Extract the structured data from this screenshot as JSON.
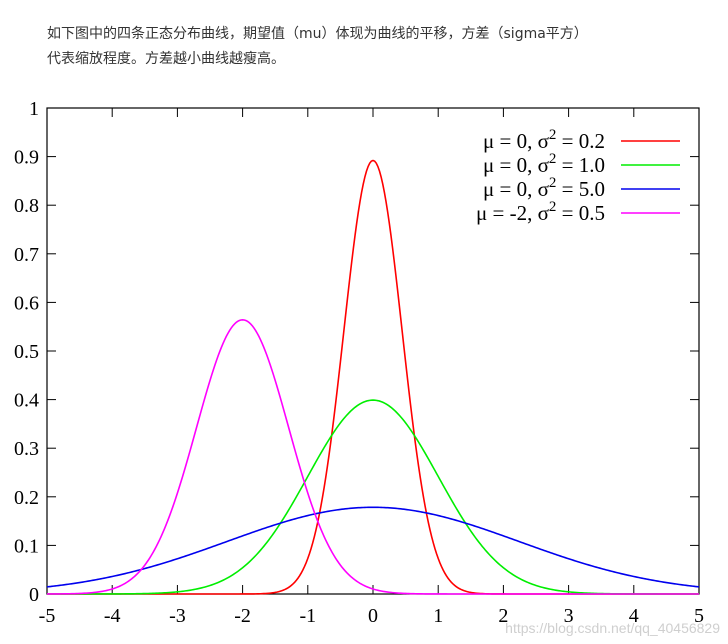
{
  "intro": {
    "line1": "如下图中的四条正态分布曲线，期望值（mu）体现为曲线的平移，方差（sigma平方）",
    "line2": "代表缩放程度。方差越小曲线越瘦高。"
  },
  "watermark": "https://blog.csdn.net/qq_40456829",
  "chart_data": {
    "type": "line",
    "title": "",
    "xlabel": "",
    "ylabel": "",
    "xlim": [
      -5,
      5
    ],
    "ylim": [
      0,
      1
    ],
    "x_ticks": [
      "-5",
      "-4",
      "-3",
      "-2",
      "-1",
      "0",
      "1",
      "2",
      "3",
      "4",
      "5"
    ],
    "y_ticks": [
      "0",
      "0.1",
      "0.2",
      "0.3",
      "0.4",
      "0.5",
      "0.6",
      "0.7",
      "0.8",
      "0.9",
      "1"
    ],
    "grid": false,
    "legend_position": "top-right",
    "series": [
      {
        "name": "μ = 0, σ2 = 0.2",
        "mu": 0,
        "variance": 0.2,
        "color": "#ff0000"
      },
      {
        "name": "μ = 0, σ2 = 1.0",
        "mu": 0,
        "variance": 1.0,
        "color": "#00ee00"
      },
      {
        "name": "μ = 0, σ2 = 5.0",
        "mu": 0,
        "variance": 5.0,
        "color": "#0000ee"
      },
      {
        "name": "μ = -2, σ2 = 0.5",
        "mu": -2,
        "variance": 0.5,
        "color": "#ff00ff"
      }
    ]
  }
}
